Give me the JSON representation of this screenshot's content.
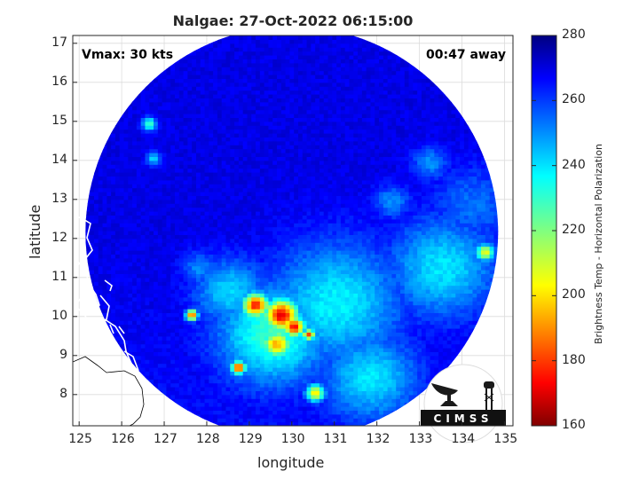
{
  "chart_data": {
    "type": "heatmap",
    "title": "Nalgae: 27-Oct-2022 06:15:00",
    "annotations": {
      "vmax": "Vmax: 30 kts",
      "time_away": "00:47 away"
    },
    "xlabel": "longitude",
    "ylabel": "latitude",
    "xlim": [
      124.85,
      135.2
    ],
    "ylim": [
      7.2,
      17.2
    ],
    "xticks": [
      125,
      126,
      127,
      128,
      129,
      130,
      131,
      132,
      133,
      134,
      135
    ],
    "yticks": [
      8,
      9,
      10,
      11,
      12,
      13,
      14,
      15,
      16,
      17
    ],
    "colorbar": {
      "label": "Brightness Temp - Horizontal Polarization",
      "range": [
        160,
        280
      ],
      "ticks": [
        160,
        180,
        200,
        220,
        240,
        260,
        280
      ],
      "colormap": "jet"
    },
    "swath": {
      "center_lon": 130.0,
      "center_lat": 12.15,
      "radius_deg": 4.85,
      "background_tb": 268
    },
    "features": [
      {
        "lon": 129.7,
        "lat": 10.0,
        "tb": 172,
        "sigma": 0.28
      },
      {
        "lon": 129.1,
        "lat": 10.25,
        "tb": 178,
        "sigma": 0.22
      },
      {
        "lon": 130.0,
        "lat": 9.7,
        "tb": 175,
        "sigma": 0.18
      },
      {
        "lon": 129.6,
        "lat": 9.25,
        "tb": 195,
        "sigma": 0.25
      },
      {
        "lon": 128.7,
        "lat": 8.65,
        "tb": 180,
        "sigma": 0.12
      },
      {
        "lon": 130.35,
        "lat": 9.5,
        "tb": 185,
        "sigma": 0.1
      },
      {
        "lon": 127.6,
        "lat": 10.0,
        "tb": 185,
        "sigma": 0.1
      },
      {
        "lon": 130.5,
        "lat": 8.0,
        "tb": 200,
        "sigma": 0.15
      },
      {
        "lon": 134.5,
        "lat": 11.6,
        "tb": 205,
        "sigma": 0.15
      },
      {
        "lon": 129.5,
        "lat": 9.5,
        "tb": 228,
        "sigma": 0.9
      },
      {
        "lon": 131.0,
        "lat": 10.3,
        "tb": 236,
        "sigma": 1.1
      },
      {
        "lon": 133.5,
        "lat": 11.2,
        "tb": 238,
        "sigma": 0.9
      },
      {
        "lon": 131.8,
        "lat": 8.4,
        "tb": 238,
        "sigma": 0.8
      },
      {
        "lon": 128.5,
        "lat": 10.6,
        "tb": 240,
        "sigma": 0.6
      },
      {
        "lon": 134.2,
        "lat": 12.8,
        "tb": 252,
        "sigma": 0.7
      },
      {
        "lon": 126.6,
        "lat": 14.9,
        "tb": 225,
        "sigma": 0.12
      },
      {
        "lon": 126.7,
        "lat": 14.0,
        "tb": 240,
        "sigma": 0.12
      },
      {
        "lon": 133.2,
        "lat": 13.9,
        "tb": 248,
        "sigma": 0.3
      },
      {
        "lon": 132.3,
        "lat": 12.9,
        "tb": 248,
        "sigma": 0.3
      },
      {
        "lon": 127.8,
        "lat": 11.2,
        "tb": 248,
        "sigma": 0.3
      }
    ]
  },
  "logo": {
    "text": "CIMSS"
  }
}
